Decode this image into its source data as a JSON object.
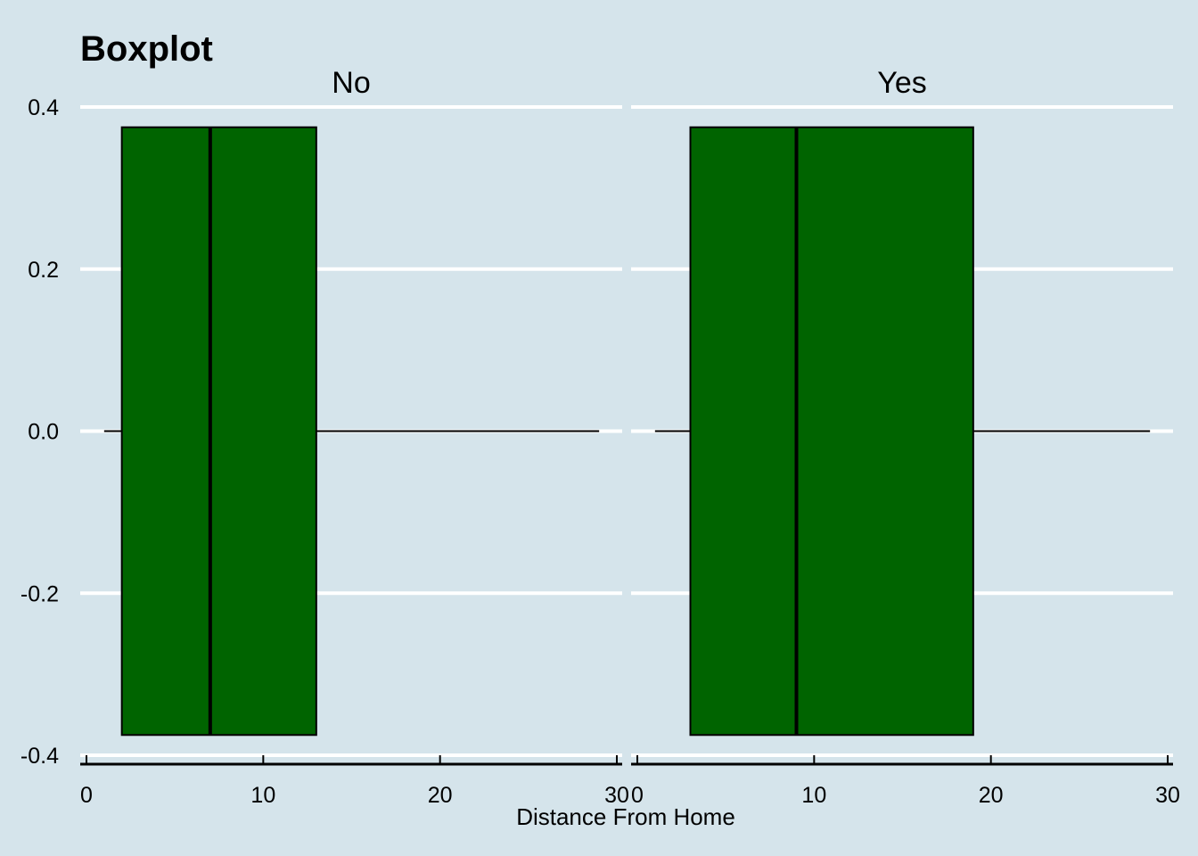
{
  "chart_data": {
    "type": "boxplot",
    "title": "Boxplot",
    "xlabel": "Distance From Home",
    "ylabel": "",
    "xlim": [
      0,
      30
    ],
    "ylim": [
      -0.4,
      0.4
    ],
    "x_ticks": [
      0,
      10,
      20,
      30
    ],
    "x_tick_labels": [
      "0",
      "10",
      "20",
      "30"
    ],
    "y_ticks": [
      0.4,
      0.2,
      0.0,
      -0.2,
      -0.4
    ],
    "y_tick_labels": [
      "0.4",
      "0.2",
      "0.0",
      "-0.2",
      "-0.4"
    ],
    "grid": "horizontal",
    "orientation": "horizontal",
    "panels": [
      {
        "name": "No",
        "min": 1,
        "q1": 2,
        "median": 7,
        "q3": 13,
        "max": 29
      },
      {
        "name": "Yes",
        "min": 1,
        "q1": 3,
        "median": 9,
        "q3": 19,
        "max": 29
      }
    ],
    "colors": {
      "background": "#d5e4eb",
      "box_fill": "#006400",
      "grid": "#ffffff",
      "line": "#000000"
    }
  }
}
